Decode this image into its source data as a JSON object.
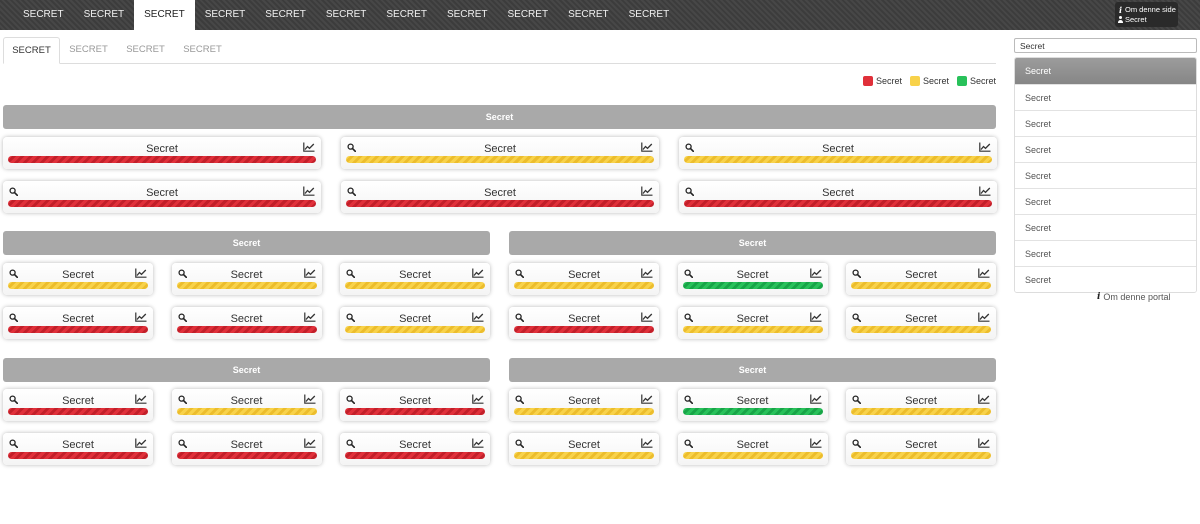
{
  "topnav": {
    "items": [
      "SECRET",
      "SECRET",
      "SECRET",
      "SECRET",
      "SECRET",
      "SECRET",
      "SECRET",
      "SECRET",
      "SECRET",
      "SECRET",
      "SECRET"
    ],
    "active_index": 2,
    "about_page": "Om denne side",
    "user": "Secret"
  },
  "subtabs": {
    "items": [
      "SECRET",
      "SECRET",
      "SECRET",
      "SECRET"
    ],
    "active_index": 0
  },
  "legend": [
    {
      "label": "Secret",
      "color": "#e0303a"
    },
    {
      "label": "Secret",
      "color": "#f8d24a"
    },
    {
      "label": "Secret",
      "color": "#28c15a"
    }
  ],
  "status_colors": {
    "red": "#e0303a",
    "yellow": "#f8d24a",
    "green": "#28c15a"
  },
  "section1": {
    "title": "Secret",
    "cards": [
      {
        "label": "Secret",
        "status": "red",
        "search": false
      },
      {
        "label": "Secret",
        "status": "yellow",
        "search": true
      },
      {
        "label": "Secret",
        "status": "yellow",
        "search": true
      },
      {
        "label": "Secret",
        "status": "red",
        "search": true
      },
      {
        "label": "Secret",
        "status": "red",
        "search": true
      },
      {
        "label": "Secret",
        "status": "red",
        "search": true
      }
    ]
  },
  "section2": {
    "title": "Secret",
    "cards": [
      {
        "label": "Secret",
        "status": "yellow",
        "search": true
      },
      {
        "label": "Secret",
        "status": "yellow",
        "search": true
      },
      {
        "label": "Secret",
        "status": "yellow",
        "search": true
      },
      {
        "label": "Secret",
        "status": "red",
        "search": true
      },
      {
        "label": "Secret",
        "status": "red",
        "search": true
      },
      {
        "label": "Secret",
        "status": "yellow",
        "search": true
      }
    ]
  },
  "section3": {
    "title": "Secret",
    "cards": [
      {
        "label": "Secret",
        "status": "yellow",
        "search": true
      },
      {
        "label": "Secret",
        "status": "green",
        "search": true
      },
      {
        "label": "Secret",
        "status": "yellow",
        "search": true
      },
      {
        "label": "Secret",
        "status": "red",
        "search": true
      },
      {
        "label": "Secret",
        "status": "yellow",
        "search": true
      },
      {
        "label": "Secret",
        "status": "yellow",
        "search": true
      }
    ]
  },
  "section4": {
    "title": "Secret",
    "cards": [
      {
        "label": "Secret",
        "status": "red",
        "search": true
      },
      {
        "label": "Secret",
        "status": "yellow",
        "search": true
      },
      {
        "label": "Secret",
        "status": "red",
        "search": true
      },
      {
        "label": "Secret",
        "status": "red",
        "search": true
      },
      {
        "label": "Secret",
        "status": "red",
        "search": true
      },
      {
        "label": "Secret",
        "status": "red",
        "search": true
      }
    ]
  },
  "section5": {
    "title": "Secret",
    "cards": [
      {
        "label": "Secret",
        "status": "yellow",
        "search": true
      },
      {
        "label": "Secret",
        "status": "green",
        "search": true
      },
      {
        "label": "Secret",
        "status": "yellow",
        "search": true
      },
      {
        "label": "Secret",
        "status": "yellow",
        "search": true
      },
      {
        "label": "Secret",
        "status": "yellow",
        "search": true
      },
      {
        "label": "Secret",
        "status": "yellow",
        "search": true
      }
    ]
  },
  "sidebar": {
    "search_value": "Secret",
    "items": [
      "Secret",
      "Secret",
      "Secret",
      "Secret",
      "Secret",
      "Secret",
      "Secret",
      "Secret",
      "Secret"
    ],
    "active_index": 0,
    "portal_link": "Om denne portal"
  }
}
